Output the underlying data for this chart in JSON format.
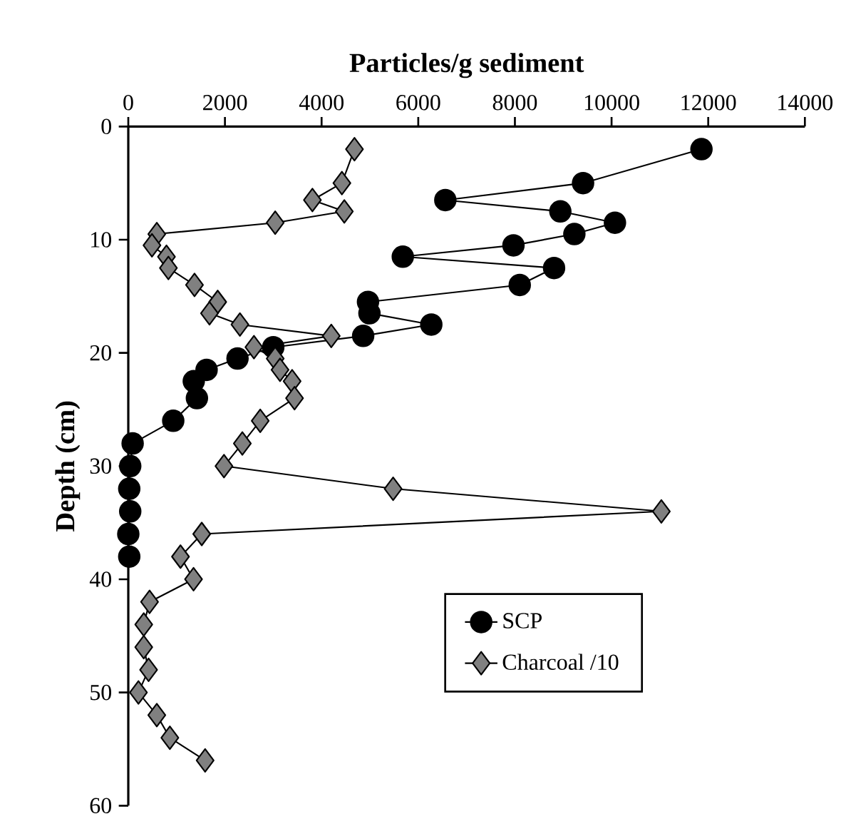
{
  "chart_data": {
    "type": "line",
    "xlabel": "Particles/g sediment",
    "ylabel": "Depth (cm)",
    "xlim": [
      0,
      14000
    ],
    "xticks": [
      0,
      2000,
      4000,
      6000,
      8000,
      10000,
      12000,
      14000
    ],
    "ylim": [
      60,
      0
    ],
    "yticks": [
      0,
      10,
      20,
      30,
      40,
      50,
      60
    ],
    "grid": false,
    "legend": "bottom right",
    "series": [
      {
        "name": "SCP",
        "color": "#000000",
        "marker": "circle",
        "x": [
          11860,
          9410,
          6560,
          8940,
          10070,
          9230,
          7970,
          5680,
          8810,
          8100,
          4960,
          4990,
          6270,
          4860,
          3000,
          2260,
          1620,
          1355,
          1420,
          930,
          90,
          40,
          20,
          40,
          0,
          20
        ],
        "values": [
          2,
          5,
          6.5,
          7.5,
          8.5,
          9.5,
          10.5,
          11.5,
          12.5,
          14,
          15.5,
          16.5,
          17.5,
          18.5,
          19.5,
          20.5,
          21.5,
          22.5,
          24,
          26,
          28,
          30,
          32,
          34,
          36,
          38
        ]
      },
      {
        "name": "Charcoal /10",
        "color": "#808080",
        "marker": "diamond",
        "x": [
          4680,
          4420,
          3810,
          4470,
          3040,
          590,
          490,
          790,
          830,
          1370,
          1850,
          1680,
          2310,
          4200,
          2600,
          3040,
          3140,
          3390,
          3440,
          2730,
          2360,
          1980,
          5480,
          11030,
          1520,
          1080,
          1350,
          440,
          320,
          320,
          420,
          210,
          590,
          860,
          1590
        ],
        "values": [
          2,
          5,
          6.5,
          7.5,
          8.5,
          9.5,
          10.5,
          11.5,
          12.5,
          14,
          15.5,
          16.5,
          17.5,
          18.5,
          19.5,
          20.5,
          21.5,
          22.5,
          24,
          26,
          28,
          30,
          32,
          34,
          36,
          38,
          40,
          42,
          44,
          46,
          48,
          50,
          52,
          54,
          56
        ]
      }
    ]
  }
}
